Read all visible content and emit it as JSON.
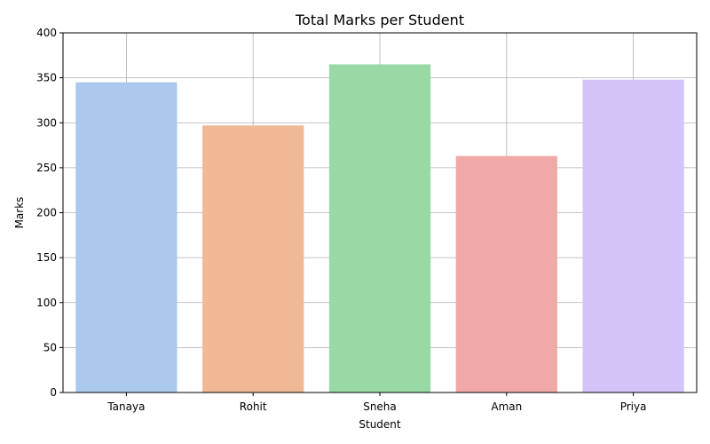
{
  "chart_data": {
    "type": "bar",
    "title": "Total Marks per Student",
    "xlabel": "Student",
    "ylabel": "Marks",
    "categories": [
      "Tanaya",
      "Rohit",
      "Sneha",
      "Aman",
      "Priya"
    ],
    "values": [
      345,
      297,
      365,
      263,
      348
    ],
    "colors": [
      "#abc9ed",
      "#f0b894",
      "#98d9a6",
      "#f1a9a7",
      "#d3c3f8"
    ],
    "ylim": [
      0,
      400
    ],
    "yticks": [
      0,
      50,
      100,
      150,
      200,
      250,
      300,
      350,
      400
    ],
    "grid": true,
    "legend": "none"
  }
}
